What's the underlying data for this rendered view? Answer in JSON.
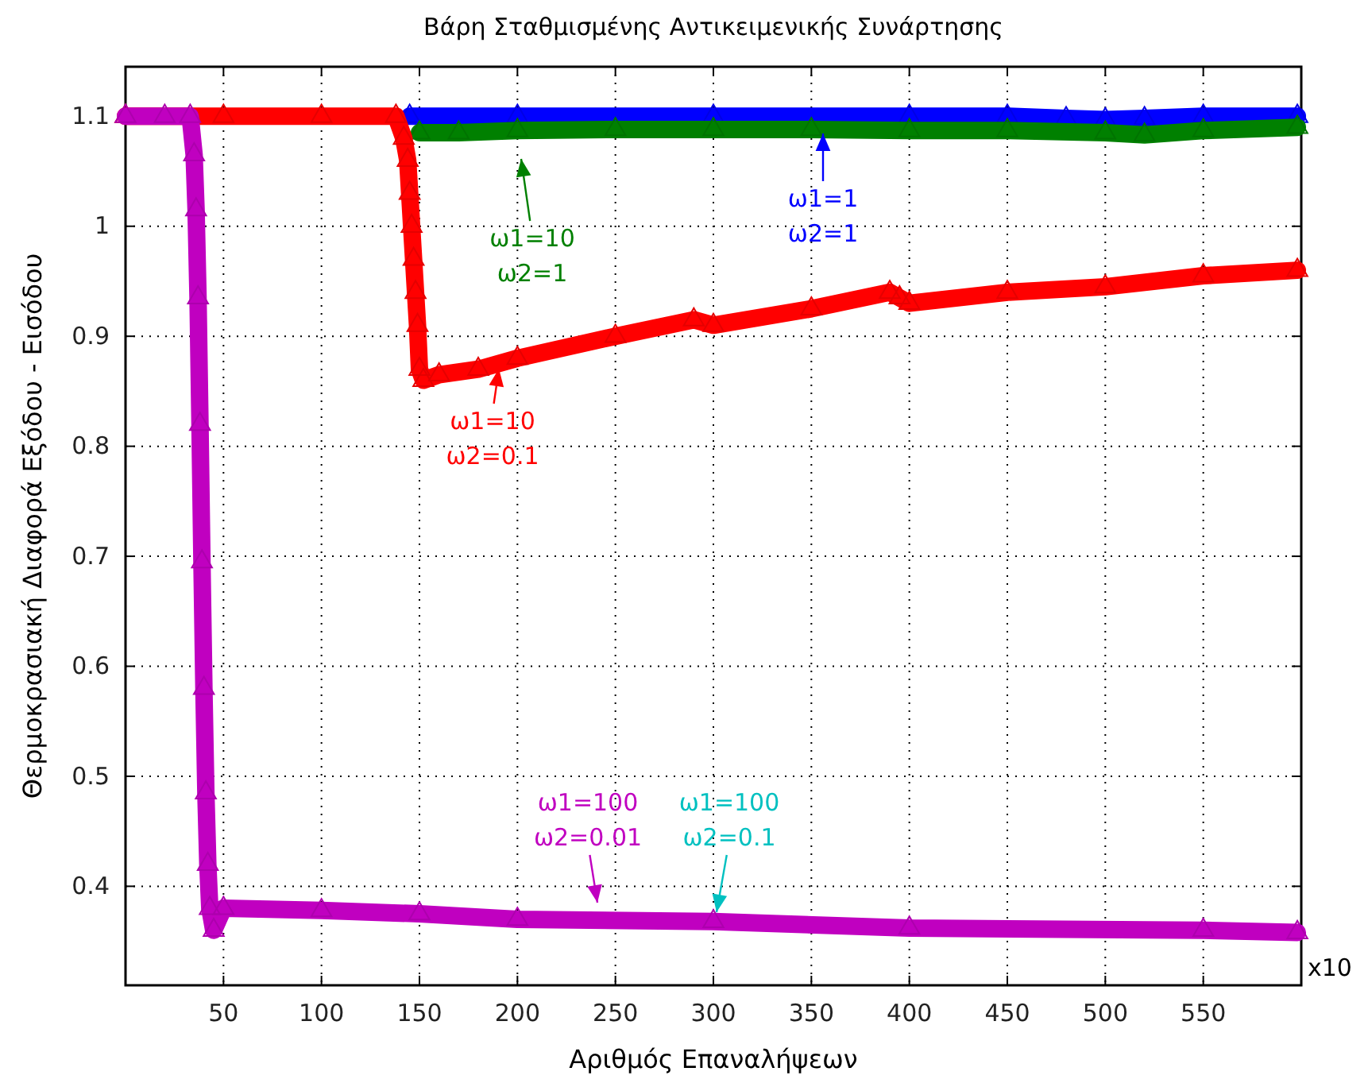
{
  "chart_data": {
    "type": "line",
    "title": "Βάρη Σταθμισμένης Αντικειμενικής Συνάρτησης",
    "xlabel": "Αριθμός Επαναλήψεων",
    "ylabel": "Θερμοκρασιακή Διαφορά Εξόδου - Εισόδου",
    "annotations": [
      "x10"
    ],
    "xlim": [
      0,
      600
    ],
    "xticks": [
      50,
      100,
      150,
      200,
      250,
      300,
      350,
      400,
      450,
      500,
      550
    ],
    "ylim": [
      0.31,
      1.145
    ],
    "yticks": [
      0.4,
      0.5,
      0.6,
      0.7,
      0.8,
      0.9,
      1,
      1.1
    ],
    "grid": true,
    "marker": "triangle",
    "line_style": "solid",
    "legend": "top",
    "series": [
      {
        "name": "ω1=1\nω2=1",
        "color": "#0000ff",
        "x": [
          145,
          200,
          300,
          400,
          450,
          480,
          500,
          520,
          550,
          598
        ],
        "values": [
          1.1,
          1.1,
          1.1,
          1.1,
          1.1,
          1.098,
          1.097,
          1.098,
          1.1,
          1.1
        ]
      },
      {
        "name": "ω1=10\nω2=1",
        "color": "#008000",
        "x": [
          150,
          170,
          200,
          250,
          300,
          350,
          400,
          450,
          500,
          520,
          550,
          598
        ],
        "values": [
          1.085,
          1.085,
          1.087,
          1.088,
          1.088,
          1.088,
          1.087,
          1.087,
          1.085,
          1.083,
          1.087,
          1.09
        ]
      },
      {
        "name": "ω1=10\nω2=0.1",
        "color": "#ff0000",
        "x": [
          0,
          50,
          100,
          138,
          142,
          144,
          145,
          146,
          147,
          148,
          149,
          150,
          152,
          160,
          180,
          200,
          250,
          290,
          300,
          350,
          390,
          395,
          400,
          450,
          500,
          550,
          598
        ],
        "values": [
          1.1,
          1.1,
          1.1,
          1.1,
          1.08,
          1.06,
          1.03,
          1.0,
          0.97,
          0.94,
          0.91,
          0.87,
          0.86,
          0.865,
          0.87,
          0.88,
          0.9,
          0.915,
          0.91,
          0.925,
          0.94,
          0.935,
          0.93,
          0.94,
          0.945,
          0.955,
          0.96
        ]
      },
      {
        "name": "ω1=100\nω2=0.01",
        "color": "#c000c0",
        "x": [
          0,
          20,
          33,
          35,
          36,
          37,
          38,
          39,
          40,
          41,
          42,
          43,
          45,
          50,
          100,
          150,
          200,
          300,
          400,
          550,
          598
        ],
        "values": [
          1.1,
          1.1,
          1.1,
          1.065,
          1.015,
          0.935,
          0.82,
          0.695,
          0.58,
          0.485,
          0.42,
          0.38,
          0.36,
          0.38,
          0.378,
          0.375,
          0.37,
          0.368,
          0.362,
          0.36,
          0.358
        ]
      },
      {
        "name": "ω1=100\nω2=0.1",
        "color": "#00c0c0"
      }
    ]
  }
}
